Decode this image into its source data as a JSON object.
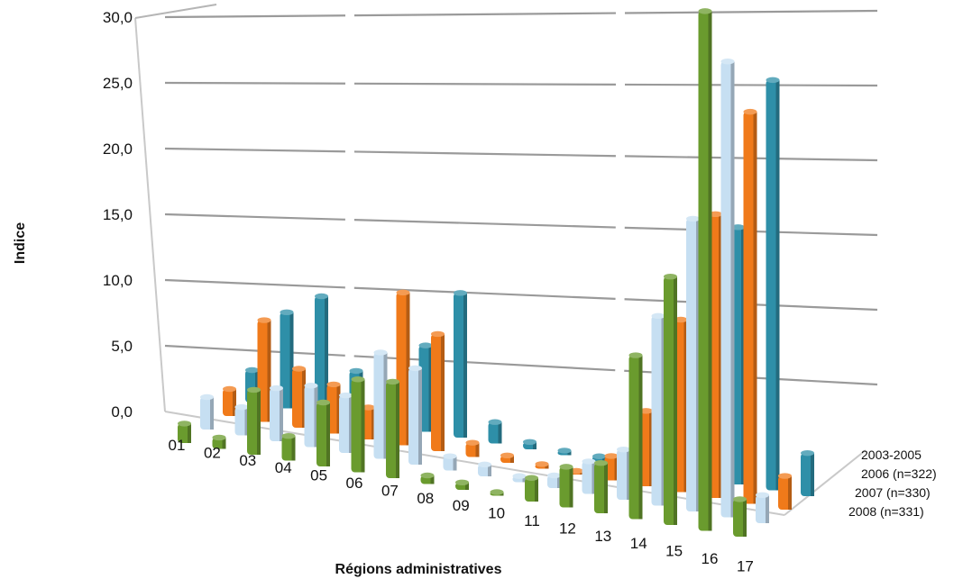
{
  "chart_data": {
    "type": "bar",
    "variant": "3d-column",
    "xlabel": "Régions administratives",
    "ylabel": "Indice",
    "ylim": [
      0,
      30
    ],
    "yticks": [
      "0,0",
      "5,0",
      "10,0",
      "15,0",
      "20,0",
      "25,0",
      "30,0"
    ],
    "grid": true,
    "categories": [
      "01",
      "02",
      "03",
      "04",
      "05",
      "06",
      "07",
      "08",
      "09",
      "10",
      "11",
      "12",
      "13",
      "14",
      "15",
      "16",
      "17"
    ],
    "series": [
      {
        "name": "2003-2005",
        "color": "#2E8FA8",
        "values": [
          3.0,
          8.5,
          10.0,
          4.0,
          3.0,
          6.5,
          10.5,
          1.5,
          0.5,
          0.3,
          0.3,
          0.3,
          3.0,
          8.0,
          14.5,
          22.5,
          2.3
        ]
      },
      {
        "name": "2006 (n=322)",
        "color": "#F07A1A",
        "values": [
          2.5,
          9.0,
          5.0,
          4.0,
          2.5,
          11.5,
          8.5,
          1.0,
          0.5,
          0.3,
          0.2,
          1.5,
          4.5,
          10.0,
          16.0,
          21.5,
          1.8
        ]
      },
      {
        "name": "2007 (n=330)",
        "color": "#C6DFF2",
        "values": [
          3.0,
          2.5,
          4.5,
          5.0,
          4.5,
          8.0,
          7.0,
          1.0,
          0.8,
          0.4,
          0.8,
          2.0,
          3.0,
          11.0,
          16.5,
          25.0,
          1.5
        ]
      },
      {
        "name": "2008 (n=331)",
        "color": "#6A9B2E",
        "values": [
          1.8,
          1.0,
          5.5,
          2.0,
          5.0,
          7.0,
          7.0,
          0.6,
          0.5,
          0.2,
          1.5,
          2.5,
          3.0,
          9.5,
          14.0,
          28.5,
          2.0
        ]
      }
    ]
  }
}
